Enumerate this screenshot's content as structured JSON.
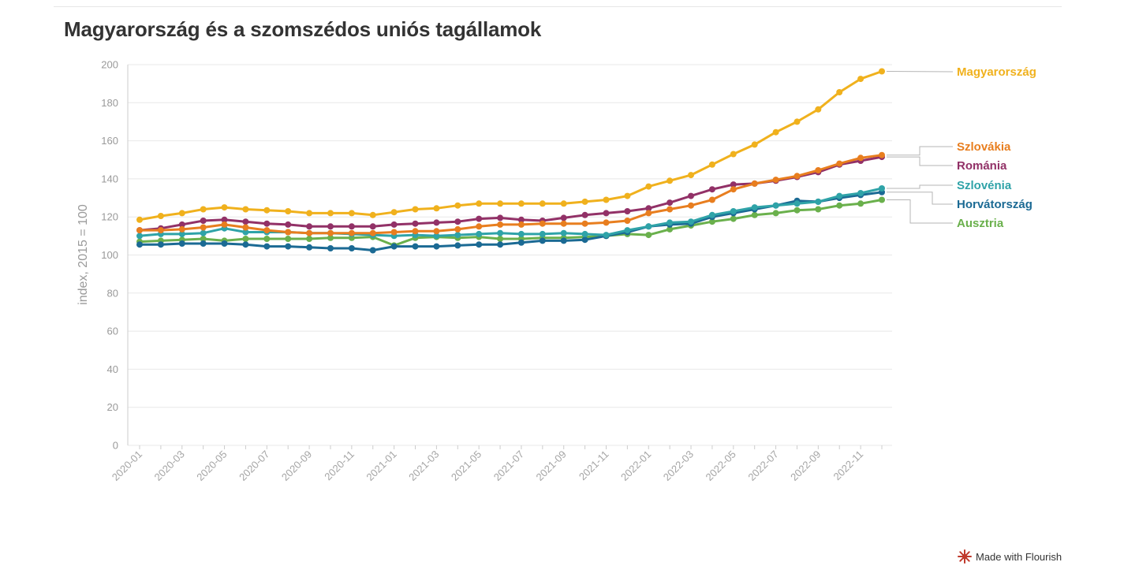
{
  "title": "Magyarország és a szomszédos uniós tagállamok",
  "footer": {
    "label": "Made with Flourish",
    "icon": "flourish-logo-icon"
  },
  "chart_data": {
    "type": "line",
    "title": "Magyarország és a szomszédos uniós tagállamok",
    "xlabel": "",
    "ylabel": "index, 2015 = 100",
    "ylim": [
      0,
      200
    ],
    "yticks": [
      0,
      20,
      40,
      60,
      80,
      100,
      120,
      140,
      160,
      180,
      200
    ],
    "grid": true,
    "legend": "right, labels at line ends",
    "x": [
      "2020-01",
      "2020-02",
      "2020-03",
      "2020-04",
      "2020-05",
      "2020-06",
      "2020-07",
      "2020-08",
      "2020-09",
      "2020-10",
      "2020-11",
      "2020-12",
      "2021-01",
      "2021-02",
      "2021-03",
      "2021-04",
      "2021-05",
      "2021-06",
      "2021-07",
      "2021-08",
      "2021-09",
      "2021-10",
      "2021-11",
      "2021-12",
      "2022-01",
      "2022-02",
      "2022-03",
      "2022-04",
      "2022-05",
      "2022-06",
      "2022-07",
      "2022-08",
      "2022-09",
      "2022-10",
      "2022-11",
      "2022-12"
    ],
    "xtick_labels": [
      "2020-01",
      "2020-03",
      "2020-05",
      "2020-07",
      "2020-09",
      "2020-11",
      "2021-01",
      "2021-03",
      "2021-05",
      "2021-07",
      "2021-09",
      "2021-11",
      "2022-01",
      "2022-03",
      "2022-05",
      "2022-07",
      "2022-09",
      "2022-11"
    ],
    "series": [
      {
        "name": "Ausztria",
        "color": "#6ab04c",
        "values": [
          107,
          107.5,
          108,
          108.5,
          107.5,
          108.5,
          108.5,
          108.5,
          108.5,
          109,
          109,
          109.5,
          105,
          109,
          109.5,
          109,
          109.5,
          108.5,
          108.5,
          109,
          109,
          109.5,
          110,
          111,
          110.5,
          113.5,
          115.5,
          117.5,
          119,
          121,
          122,
          123.5,
          124,
          126,
          127,
          129
        ]
      },
      {
        "name": "Horvátország",
        "color": "#1b6a94",
        "values": [
          105.5,
          105.5,
          106,
          106,
          106,
          105.5,
          104.5,
          104.5,
          104,
          103.5,
          103.5,
          102.5,
          104.5,
          104.5,
          104.5,
          105,
          105.5,
          105.5,
          106.5,
          107.5,
          107.5,
          108,
          110,
          112,
          115,
          116,
          116.5,
          120,
          122,
          124,
          126,
          128.5,
          128,
          130,
          131.5,
          133
        ]
      },
      {
        "name": "Szlovénia",
        "color": "#2fa3a8",
        "values": [
          110,
          111,
          111,
          111.5,
          114,
          112,
          112,
          112,
          111.5,
          111.5,
          111,
          110.5,
          110,
          110.5,
          110,
          110.5,
          111,
          111.5,
          111,
          111,
          111.5,
          111,
          110.5,
          113,
          115,
          117,
          117.5,
          121,
          123,
          125,
          126,
          127,
          128,
          131,
          132.5,
          135
        ]
      },
      {
        "name": "Románia",
        "color": "#923167",
        "values": [
          113,
          114,
          116,
          118,
          118.5,
          117.5,
          116.5,
          116,
          115,
          115,
          115,
          115,
          116,
          116.5,
          117,
          117.5,
          119,
          119.5,
          118.5,
          118,
          119.5,
          121,
          122,
          123,
          124.5,
          127.5,
          131,
          134.5,
          137,
          137.5,
          139,
          141,
          143.5,
          147.5,
          149.5,
          151.5
        ]
      },
      {
        "name": "Szlovákia",
        "color": "#e87e1f",
        "values": [
          113,
          113,
          113.5,
          114.5,
          116,
          114.5,
          113,
          112,
          111.5,
          111.5,
          111.5,
          111.5,
          112,
          112.5,
          112.5,
          113.5,
          115,
          116,
          116,
          116.5,
          116.5,
          116.5,
          117,
          118,
          122,
          124,
          126,
          129,
          134.5,
          137.5,
          139.5,
          141.5,
          144.5,
          148,
          151,
          152.5
        ]
      },
      {
        "name": "Magyarország",
        "color": "#f0b11d",
        "values": [
          118.5,
          120.5,
          122,
          124,
          125,
          124,
          123.5,
          123,
          122,
          122,
          122,
          121,
          122.5,
          124,
          124.5,
          126,
          127,
          127,
          127,
          127,
          127,
          128,
          129,
          131,
          136,
          139,
          142,
          147.5,
          153,
          158,
          164.5,
          170,
          176.5,
          185.5,
          192.5,
          196.5
        ]
      }
    ]
  }
}
